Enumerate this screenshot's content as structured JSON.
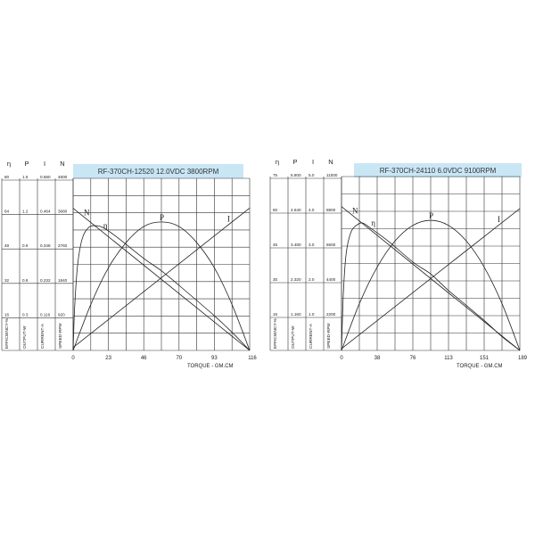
{
  "chart_data": [
    {
      "type": "line",
      "title": "RF-370CH-12520  12.0VDC   3800RPM",
      "xlabel": "TORQUE - GM.CM",
      "xlim": [
        0,
        116
      ],
      "xticks": [
        "0",
        "23",
        "46",
        "70",
        "93",
        "116"
      ],
      "grid": true,
      "title_bg": "#c9e6f5",
      "axis_headers": [
        "η",
        "P",
        "I",
        "N"
      ],
      "axis_names": [
        "EFFICIENCY-%",
        "OUTPUT-W",
        "CURRENT-A",
        "SPEED-RPM"
      ],
      "axis_max": [
        80,
        1.5,
        0.58,
        4600
      ],
      "axis_rows": [
        [
          "80",
          "1.5",
          "0.580",
          "4600"
        ],
        [
          "64",
          "1.2",
          "0.464",
          "3680"
        ],
        [
          "48",
          "0.9",
          "0.348",
          "2760"
        ],
        [
          "32",
          "0.6",
          "0.232",
          "1840"
        ],
        [
          "16",
          "0.3",
          "0.116",
          "920"
        ]
      ],
      "series": [
        {
          "name": "N",
          "axis": 3,
          "points": [
            [
              0,
              3800
            ],
            [
              116,
              0
            ]
          ]
        },
        {
          "name": "η",
          "axis": 0,
          "points": [
            [
              0,
              0
            ],
            [
              1,
              20
            ],
            [
              3,
              40
            ],
            [
              6,
              52
            ],
            [
              10,
              57
            ],
            [
              14,
              58
            ],
            [
              20,
              57
            ],
            [
              30,
              52
            ],
            [
              46,
              43
            ],
            [
              58,
              37
            ],
            [
              70,
              30
            ],
            [
              93,
              16
            ],
            [
              105,
              8
            ],
            [
              116,
              0
            ]
          ]
        },
        {
          "name": "P",
          "axis": 1,
          "points": [
            [
              0,
              0
            ],
            [
              11.6,
              0.4
            ],
            [
              23.2,
              0.72
            ],
            [
              34.8,
              0.94
            ],
            [
              46.4,
              1.08
            ],
            [
              58,
              1.12
            ],
            [
              69.6,
              1.08
            ],
            [
              81.2,
              0.94
            ],
            [
              92.8,
              0.72
            ],
            [
              104.4,
              0.4
            ],
            [
              116,
              0
            ]
          ]
        },
        {
          "name": "I",
          "axis": 2,
          "points": [
            [
              0,
              0.01
            ],
            [
              116,
              0.48
            ]
          ]
        }
      ]
    },
    {
      "type": "line",
      "title": "RF-370CH-24110    6.0VDC    9100RPM",
      "xlabel": "TORQUE - GM.CM",
      "xlim": [
        0,
        189
      ],
      "xticks": [
        "0",
        "38",
        "76",
        "113",
        "151",
        "189"
      ],
      "grid": true,
      "title_bg": "#c9e6f5",
      "axis_headers": [
        "η",
        "P",
        "I",
        "N"
      ],
      "axis_names": [
        "EFFICIENCY-%",
        "OUTPUT-W",
        "CURRENT-A",
        "SPEED-RPM"
      ],
      "axis_max": [
        75,
        5.8,
        5.0,
        11000
      ],
      "axis_rows": [
        [
          "75",
          "5.800",
          "5.0",
          "11000"
        ],
        [
          "60",
          "4.640",
          "4.0",
          "8800"
        ],
        [
          "45",
          "3.480",
          "3.0",
          "6600"
        ],
        [
          "30",
          "2.320",
          "2.0",
          "4400"
        ],
        [
          "15",
          "1.160",
          "1.0",
          "2200"
        ]
      ],
      "series": [
        {
          "name": "N",
          "axis": 3,
          "points": [
            [
              0,
              9100
            ],
            [
              189,
              0
            ]
          ]
        },
        {
          "name": "η",
          "axis": 0,
          "points": [
            [
              0,
              0
            ],
            [
              2,
              25
            ],
            [
              5,
              42
            ],
            [
              10,
              51
            ],
            [
              16,
              54
            ],
            [
              22,
              55
            ],
            [
              30,
              53
            ],
            [
              50,
              47
            ],
            [
              76,
              38
            ],
            [
              94.5,
              33
            ],
            [
              113,
              26
            ],
            [
              151,
              13
            ],
            [
              170,
              6
            ],
            [
              189,
              0
            ]
          ]
        },
        {
          "name": "P",
          "axis": 1,
          "points": [
            [
              0,
              0
            ],
            [
              18.9,
              1.56
            ],
            [
              37.8,
              2.78
            ],
            [
              56.7,
              3.65
            ],
            [
              75.6,
              4.17
            ],
            [
              94.5,
              4.34
            ],
            [
              113.4,
              4.17
            ],
            [
              132.3,
              3.65
            ],
            [
              151.2,
              2.78
            ],
            [
              170.1,
              1.56
            ],
            [
              189,
              0
            ]
          ]
        },
        {
          "name": "I",
          "axis": 2,
          "points": [
            [
              0,
              0.05
            ],
            [
              189,
              4.08
            ]
          ]
        }
      ]
    }
  ]
}
